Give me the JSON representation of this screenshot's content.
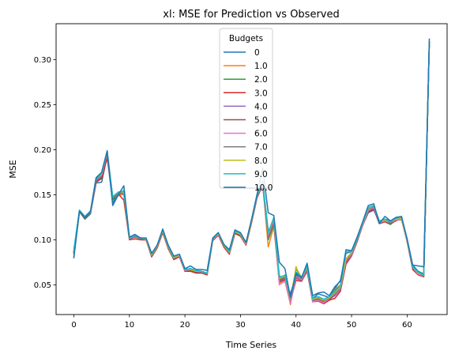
{
  "chart_data": {
    "type": "line",
    "title": "xl: MSE for Prediction vs Observed",
    "xlabel": "Time Series",
    "ylabel": "MSE",
    "xlim": [
      -3.2,
      67.2
    ],
    "ylim": [
      0.017,
      0.34
    ],
    "xticks": [
      0,
      10,
      20,
      30,
      40,
      50,
      60
    ],
    "yticks": [
      0.05,
      0.1,
      0.15,
      0.2,
      0.25,
      0.3
    ],
    "ytick_labels": [
      "0.05",
      "0.10",
      "0.15",
      "0.20",
      "0.25",
      "0.30"
    ],
    "grid": false,
    "legend": {
      "title": "Budgets",
      "placement": "top-center"
    },
    "x": [
      0,
      1,
      2,
      3,
      4,
      5,
      6,
      7,
      8,
      9,
      10,
      11,
      12,
      13,
      14,
      15,
      16,
      17,
      18,
      19,
      20,
      21,
      22,
      23,
      24,
      25,
      26,
      27,
      28,
      29,
      30,
      31,
      32,
      33,
      34,
      35,
      36,
      37,
      38,
      39,
      40,
      41,
      42,
      43,
      44,
      45,
      46,
      47,
      48,
      49,
      50,
      51,
      52,
      53,
      54,
      55,
      56,
      57,
      58,
      59,
      60,
      61,
      62,
      63,
      64
    ],
    "series": [
      {
        "name": "0",
        "color": "#1f77b4",
        "values": [
          0.081,
          0.131,
          0.123,
          0.129,
          0.163,
          0.164,
          0.193,
          0.141,
          0.15,
          0.152,
          0.102,
          0.105,
          0.102,
          0.101,
          0.085,
          0.093,
          0.11,
          0.091,
          0.081,
          0.083,
          0.067,
          0.068,
          0.066,
          0.065,
          0.063,
          0.1,
          0.107,
          0.095,
          0.088,
          0.11,
          0.107,
          0.097,
          0.12,
          0.15,
          0.165,
          0.11,
          0.12,
          0.06,
          0.056,
          0.04,
          0.062,
          0.055,
          0.071,
          0.035,
          0.04,
          0.038,
          0.036,
          0.046,
          0.055,
          0.085,
          0.087,
          0.1,
          0.116,
          0.13,
          0.133,
          0.12,
          0.123,
          0.121,
          0.123,
          0.124,
          0.1,
          0.072,
          0.065,
          0.062,
          0.32
        ]
      },
      {
        "name": "1.0",
        "color": "#ff7f0e",
        "values": [
          0.083,
          0.131,
          0.124,
          0.131,
          0.166,
          0.17,
          0.194,
          0.145,
          0.149,
          0.151,
          0.102,
          0.104,
          0.102,
          0.1,
          0.084,
          0.093,
          0.11,
          0.092,
          0.08,
          0.083,
          0.066,
          0.067,
          0.065,
          0.064,
          0.062,
          0.101,
          0.107,
          0.094,
          0.086,
          0.109,
          0.106,
          0.096,
          0.121,
          0.149,
          0.163,
          0.092,
          0.115,
          0.052,
          0.055,
          0.028,
          0.07,
          0.055,
          0.067,
          0.034,
          0.036,
          0.034,
          0.033,
          0.045,
          0.05,
          0.078,
          0.085,
          0.101,
          0.117,
          0.133,
          0.136,
          0.119,
          0.121,
          0.118,
          0.122,
          0.122,
          0.099,
          0.069,
          0.063,
          0.06,
          0.32
        ]
      },
      {
        "name": "2.0",
        "color": "#2ca02c",
        "values": [
          0.085,
          0.131,
          0.124,
          0.13,
          0.165,
          0.169,
          0.196,
          0.144,
          0.15,
          0.155,
          0.101,
          0.104,
          0.101,
          0.101,
          0.083,
          0.092,
          0.109,
          0.091,
          0.079,
          0.082,
          0.066,
          0.066,
          0.064,
          0.064,
          0.062,
          0.1,
          0.106,
          0.093,
          0.085,
          0.108,
          0.105,
          0.095,
          0.12,
          0.148,
          0.162,
          0.1,
          0.117,
          0.058,
          0.06,
          0.03,
          0.068,
          0.056,
          0.066,
          0.033,
          0.035,
          0.033,
          0.034,
          0.044,
          0.049,
          0.077,
          0.084,
          0.1,
          0.117,
          0.132,
          0.135,
          0.118,
          0.12,
          0.117,
          0.122,
          0.123,
          0.099,
          0.068,
          0.062,
          0.06,
          0.32
        ]
      },
      {
        "name": "3.0",
        "color": "#d62728",
        "values": [
          0.086,
          0.131,
          0.125,
          0.131,
          0.164,
          0.168,
          0.191,
          0.147,
          0.151,
          0.144,
          0.1,
          0.101,
          0.1,
          0.1,
          0.081,
          0.091,
          0.108,
          0.09,
          0.078,
          0.081,
          0.065,
          0.065,
          0.063,
          0.063,
          0.061,
          0.099,
          0.105,
          0.092,
          0.084,
          0.107,
          0.104,
          0.094,
          0.119,
          0.147,
          0.161,
          0.103,
          0.118,
          0.053,
          0.056,
          0.032,
          0.055,
          0.054,
          0.065,
          0.031,
          0.032,
          0.029,
          0.033,
          0.035,
          0.043,
          0.073,
          0.082,
          0.098,
          0.116,
          0.131,
          0.134,
          0.118,
          0.12,
          0.118,
          0.121,
          0.124,
          0.098,
          0.067,
          0.061,
          0.059,
          0.32
        ]
      },
      {
        "name": "4.0",
        "color": "#9467bd",
        "values": [
          0.087,
          0.132,
          0.125,
          0.132,
          0.166,
          0.171,
          0.195,
          0.146,
          0.15,
          0.153,
          0.101,
          0.103,
          0.101,
          0.101,
          0.082,
          0.092,
          0.109,
          0.091,
          0.079,
          0.082,
          0.066,
          0.066,
          0.064,
          0.064,
          0.062,
          0.1,
          0.106,
          0.093,
          0.085,
          0.108,
          0.105,
          0.095,
          0.12,
          0.148,
          0.162,
          0.102,
          0.119,
          0.054,
          0.057,
          0.033,
          0.057,
          0.055,
          0.066,
          0.032,
          0.033,
          0.031,
          0.034,
          0.038,
          0.045,
          0.075,
          0.083,
          0.099,
          0.116,
          0.132,
          0.135,
          0.119,
          0.121,
          0.118,
          0.122,
          0.123,
          0.099,
          0.068,
          0.062,
          0.06,
          0.32
        ]
      },
      {
        "name": "5.0",
        "color": "#8c564b",
        "values": [
          0.086,
          0.131,
          0.124,
          0.131,
          0.167,
          0.172,
          0.196,
          0.146,
          0.152,
          0.15,
          0.101,
          0.104,
          0.101,
          0.101,
          0.082,
          0.092,
          0.109,
          0.091,
          0.079,
          0.082,
          0.066,
          0.066,
          0.064,
          0.064,
          0.062,
          0.1,
          0.106,
          0.093,
          0.085,
          0.108,
          0.105,
          0.095,
          0.12,
          0.148,
          0.162,
          0.104,
          0.121,
          0.055,
          0.058,
          0.034,
          0.058,
          0.056,
          0.067,
          0.032,
          0.034,
          0.031,
          0.034,
          0.039,
          0.046,
          0.076,
          0.084,
          0.099,
          0.117,
          0.133,
          0.135,
          0.119,
          0.121,
          0.118,
          0.122,
          0.123,
          0.099,
          0.068,
          0.062,
          0.059,
          0.32
        ]
      },
      {
        "name": "6.0",
        "color": "#e377c2",
        "values": [
          0.088,
          0.132,
          0.125,
          0.131,
          0.167,
          0.172,
          0.197,
          0.147,
          0.152,
          0.151,
          0.101,
          0.104,
          0.101,
          0.101,
          0.083,
          0.093,
          0.11,
          0.092,
          0.08,
          0.082,
          0.066,
          0.067,
          0.065,
          0.064,
          0.062,
          0.1,
          0.106,
          0.094,
          0.086,
          0.109,
          0.106,
          0.095,
          0.121,
          0.149,
          0.163,
          0.105,
          0.122,
          0.05,
          0.054,
          0.029,
          0.059,
          0.056,
          0.068,
          0.031,
          0.033,
          0.03,
          0.035,
          0.04,
          0.046,
          0.077,
          0.084,
          0.1,
          0.117,
          0.133,
          0.136,
          0.119,
          0.121,
          0.119,
          0.122,
          0.123,
          0.099,
          0.069,
          0.062,
          0.06,
          0.32
        ]
      },
      {
        "name": "7.0",
        "color": "#7f7f7f",
        "values": [
          0.087,
          0.132,
          0.125,
          0.131,
          0.167,
          0.173,
          0.197,
          0.147,
          0.152,
          0.152,
          0.101,
          0.104,
          0.101,
          0.101,
          0.083,
          0.093,
          0.11,
          0.092,
          0.08,
          0.083,
          0.067,
          0.067,
          0.065,
          0.064,
          0.062,
          0.1,
          0.107,
          0.094,
          0.086,
          0.109,
          0.106,
          0.096,
          0.121,
          0.149,
          0.163,
          0.106,
          0.123,
          0.056,
          0.059,
          0.034,
          0.06,
          0.057,
          0.068,
          0.033,
          0.035,
          0.032,
          0.035,
          0.041,
          0.047,
          0.078,
          0.085,
          0.1,
          0.118,
          0.134,
          0.137,
          0.12,
          0.122,
          0.119,
          0.123,
          0.124,
          0.1,
          0.069,
          0.063,
          0.06,
          0.32
        ]
      },
      {
        "name": "8.0",
        "color": "#bcbd22",
        "values": [
          0.088,
          0.132,
          0.125,
          0.132,
          0.168,
          0.173,
          0.198,
          0.148,
          0.153,
          0.153,
          0.102,
          0.105,
          0.102,
          0.101,
          0.083,
          0.093,
          0.11,
          0.092,
          0.08,
          0.083,
          0.067,
          0.067,
          0.065,
          0.065,
          0.063,
          0.101,
          0.107,
          0.094,
          0.086,
          0.109,
          0.106,
          0.096,
          0.121,
          0.15,
          0.164,
          0.107,
          0.124,
          0.057,
          0.06,
          0.035,
          0.069,
          0.058,
          0.069,
          0.034,
          0.036,
          0.033,
          0.036,
          0.042,
          0.048,
          0.079,
          0.086,
          0.101,
          0.118,
          0.135,
          0.138,
          0.12,
          0.122,
          0.12,
          0.123,
          0.124,
          0.1,
          0.07,
          0.063,
          0.061,
          0.32
        ]
      },
      {
        "name": "9.0",
        "color": "#17becf",
        "values": [
          0.089,
          0.133,
          0.126,
          0.132,
          0.168,
          0.174,
          0.198,
          0.148,
          0.153,
          0.154,
          0.102,
          0.105,
          0.102,
          0.102,
          0.084,
          0.094,
          0.111,
          0.093,
          0.081,
          0.084,
          0.067,
          0.068,
          0.066,
          0.065,
          0.063,
          0.101,
          0.108,
          0.095,
          0.087,
          0.11,
          0.107,
          0.097,
          0.122,
          0.15,
          0.164,
          0.108,
          0.125,
          0.058,
          0.061,
          0.036,
          0.064,
          0.059,
          0.07,
          0.035,
          0.037,
          0.034,
          0.037,
          0.043,
          0.049,
          0.087,
          0.087,
          0.101,
          0.119,
          0.136,
          0.138,
          0.121,
          0.123,
          0.12,
          0.124,
          0.125,
          0.101,
          0.07,
          0.064,
          0.061,
          0.32
        ]
      },
      {
        "name": "10.0",
        "color": "#1f77b4",
        "values": [
          0.08,
          0.132,
          0.125,
          0.132,
          0.169,
          0.175,
          0.199,
          0.138,
          0.15,
          0.16,
          0.103,
          0.106,
          0.102,
          0.102,
          0.085,
          0.094,
          0.112,
          0.094,
          0.082,
          0.084,
          0.068,
          0.071,
          0.067,
          0.067,
          0.066,
          0.102,
          0.108,
          0.095,
          0.089,
          0.111,
          0.108,
          0.097,
          0.123,
          0.151,
          0.18,
          0.13,
          0.127,
          0.075,
          0.068,
          0.036,
          0.063,
          0.058,
          0.074,
          0.038,
          0.041,
          0.042,
          0.038,
          0.048,
          0.054,
          0.089,
          0.088,
          0.103,
          0.12,
          0.138,
          0.14,
          0.118,
          0.126,
          0.121,
          0.125,
          0.126,
          0.101,
          0.072,
          0.071,
          0.07,
          0.323
        ]
      }
    ]
  }
}
